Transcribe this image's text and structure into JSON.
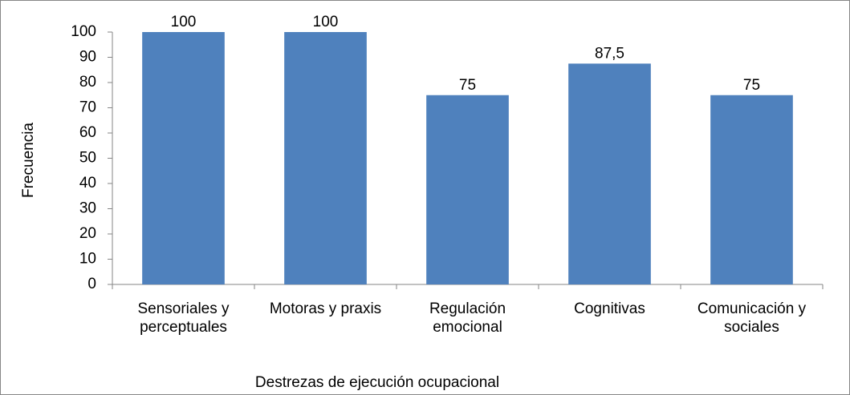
{
  "chart_data": {
    "type": "bar",
    "x_label": "Destrezas de ejecución  ocupacional",
    "y_label": "Frecuencia",
    "categories": [
      "Sensoriales y\nperceptuales",
      "Motoras y praxis",
      "Regulación\nemocional",
      "Cognitivas",
      "Comunicación y\nsociales"
    ],
    "values": [
      100,
      100,
      75,
      87.5,
      75
    ],
    "value_labels": [
      "100",
      "100",
      "75",
      "87,5",
      "75"
    ],
    "color": "#4f81bd",
    "ylim": [
      0,
      100
    ],
    "yticks": [
      0,
      10,
      20,
      30,
      40,
      50,
      60,
      70,
      80,
      90,
      100
    ],
    "grid": false
  }
}
